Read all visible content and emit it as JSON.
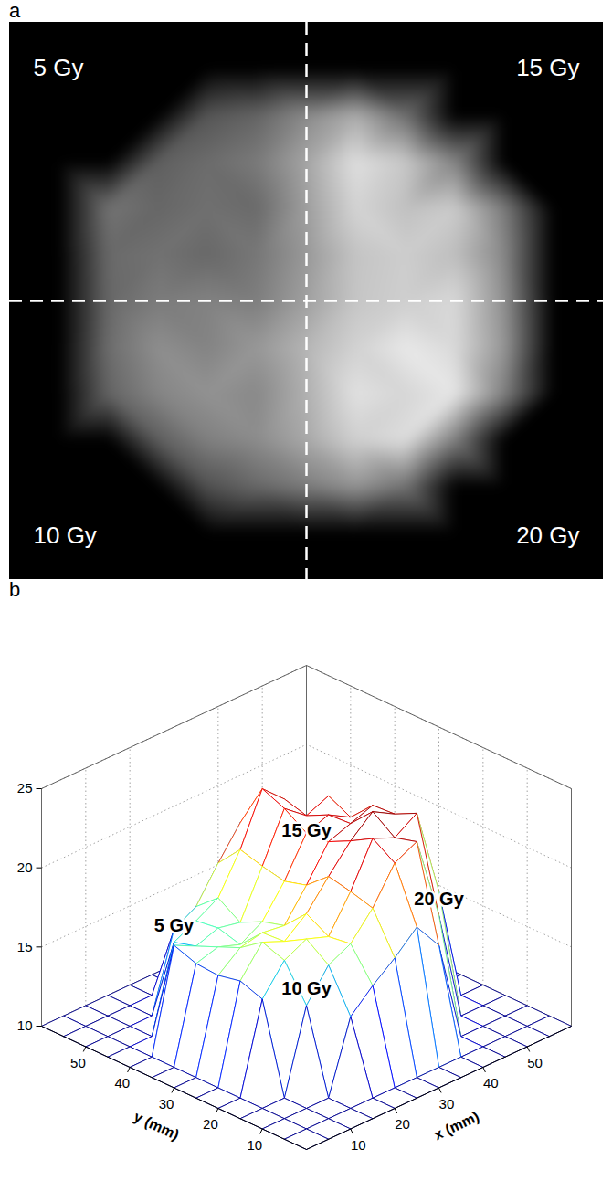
{
  "chart_data": [
    {
      "panel": "a",
      "type": "image",
      "x": [
        0,
        5,
        10,
        15,
        20,
        25,
        30,
        35,
        40,
        45,
        50,
        55,
        60
      ],
      "y": [
        0,
        5,
        10,
        15,
        20,
        25,
        30,
        35,
        40,
        45,
        50,
        55,
        60
      ],
      "cells": [
        [
          10,
          10,
          10,
          10,
          10,
          10,
          10,
          10,
          10,
          10,
          10,
          10,
          10
        ],
        [
          10,
          10,
          10,
          10,
          10,
          10,
          10,
          10,
          10,
          10,
          10,
          10,
          10
        ],
        [
          10,
          10,
          10,
          10,
          14.5,
          15.8,
          16.9,
          18.2,
          16.4,
          10,
          10,
          10,
          10
        ],
        [
          10,
          10,
          10,
          15.2,
          17.1,
          17.8,
          19.4,
          21.6,
          22.3,
          17.0,
          10,
          10,
          10
        ],
        [
          10,
          10,
          15.6,
          17.4,
          18.1,
          17.6,
          19.8,
          22.5,
          21.9,
          22.8,
          17.2,
          10,
          10
        ],
        [
          10,
          10,
          16.1,
          17.9,
          17.3,
          18.4,
          20.1,
          21.7,
          22.9,
          22.1,
          18.3,
          10,
          10
        ],
        [
          10,
          10,
          15.8,
          16.9,
          17.2,
          17.0,
          18.9,
          21.0,
          21.5,
          22.0,
          18.0,
          10,
          10
        ],
        [
          10,
          10,
          15.9,
          16.3,
          15.8,
          16.6,
          18.5,
          20.9,
          21.4,
          20.6,
          17.5,
          10,
          10
        ],
        [
          10,
          10,
          16.4,
          15.7,
          16.2,
          15.9,
          18.8,
          21.8,
          20.7,
          21.3,
          16.9,
          10,
          10
        ],
        [
          10,
          10,
          10,
          15.3,
          16.0,
          16.8,
          19.2,
          22.4,
          21.1,
          17.4,
          10,
          10,
          10
        ],
        [
          10,
          10,
          10,
          10,
          14.8,
          15.6,
          17.7,
          19.6,
          16.2,
          10,
          10,
          10,
          10
        ],
        [
          10,
          10,
          10,
          10,
          10,
          10,
          10,
          10,
          10,
          10,
          10,
          10,
          10
        ],
        [
          10,
          10,
          10,
          10,
          10,
          10,
          10,
          10,
          10,
          10,
          10,
          10,
          10
        ]
      ],
      "xlim": [
        0,
        60
      ],
      "ylim": [
        0,
        60
      ],
      "tick_labels": false,
      "annotations": [
        {
          "text": "5 Gy",
          "x": 15,
          "y": 45
        },
        {
          "text": "15 Gy",
          "x": 45,
          "y": 45
        },
        {
          "text": "10 Gy",
          "x": 15,
          "y": 15
        },
        {
          "text": "20 Gy",
          "x": 45,
          "y": 15
        }
      ]
    },
    {
      "panel": "b",
      "type": "mesh",
      "x": [
        0,
        5,
        10,
        15,
        20,
        25,
        30,
        35,
        40,
        45,
        50,
        55,
        60
      ],
      "y": [
        0,
        5,
        10,
        15,
        20,
        25,
        30,
        35,
        40,
        45,
        50,
        55,
        60
      ],
      "cells": [
        [
          10,
          10,
          10,
          10,
          10,
          10,
          10,
          10,
          10,
          10,
          10,
          10,
          10
        ],
        [
          10,
          10,
          10,
          10,
          10,
          10,
          10,
          10,
          10,
          10,
          10,
          10,
          10
        ],
        [
          10,
          10,
          10,
          10,
          14.5,
          15.8,
          16.9,
          18.2,
          16.4,
          10,
          10,
          10,
          10
        ],
        [
          10,
          10,
          10,
          15.2,
          17.1,
          17.8,
          19.4,
          21.6,
          22.3,
          17.0,
          10,
          10,
          10
        ],
        [
          10,
          10,
          15.6,
          17.4,
          18.1,
          17.6,
          19.8,
          22.5,
          21.9,
          22.8,
          17.2,
          10,
          10
        ],
        [
          10,
          10,
          16.1,
          17.9,
          17.3,
          18.4,
          20.1,
          21.7,
          22.9,
          22.1,
          18.3,
          10,
          10
        ],
        [
          10,
          10,
          15.8,
          16.9,
          17.2,
          17.0,
          18.9,
          21.0,
          21.5,
          22.0,
          18.0,
          10,
          10
        ],
        [
          10,
          10,
          15.9,
          16.3,
          15.8,
          16.6,
          18.5,
          20.9,
          21.4,
          20.6,
          17.5,
          10,
          10
        ],
        [
          10,
          10,
          16.4,
          15.7,
          16.2,
          15.9,
          18.8,
          21.8,
          20.7,
          21.3,
          16.9,
          10,
          10
        ],
        [
          10,
          10,
          10,
          15.3,
          16.0,
          16.8,
          19.2,
          22.4,
          21.1,
          17.4,
          10,
          10,
          10
        ],
        [
          10,
          10,
          10,
          10,
          14.8,
          15.6,
          17.7,
          19.6,
          16.2,
          10,
          10,
          10,
          10
        ],
        [
          10,
          10,
          10,
          10,
          10,
          10,
          10,
          10,
          10,
          10,
          10,
          10,
          10
        ],
        [
          10,
          10,
          10,
          10,
          10,
          10,
          10,
          10,
          10,
          10,
          10,
          10,
          10
        ]
      ],
      "xlim": [
        0,
        60
      ],
      "ylim": [
        0,
        60
      ],
      "zlim": [
        10,
        25
      ],
      "xticks": [
        10,
        20,
        30,
        40,
        50
      ],
      "yticks": [
        10,
        20,
        30,
        40,
        50
      ],
      "zticks": [
        10,
        15,
        20,
        25
      ],
      "xlabel": "x (mm)",
      "ylabel": "y (mm)",
      "grid": true,
      "annotations": [
        {
          "text": "15 Gy",
          "x": 45,
          "y": 45
        },
        {
          "text": "5 Gy",
          "x": 15,
          "y": 45
        },
        {
          "text": "20 Gy",
          "x": 45,
          "y": 15
        },
        {
          "text": "10 Gy",
          "x": 15,
          "y": 15
        }
      ]
    }
  ]
}
